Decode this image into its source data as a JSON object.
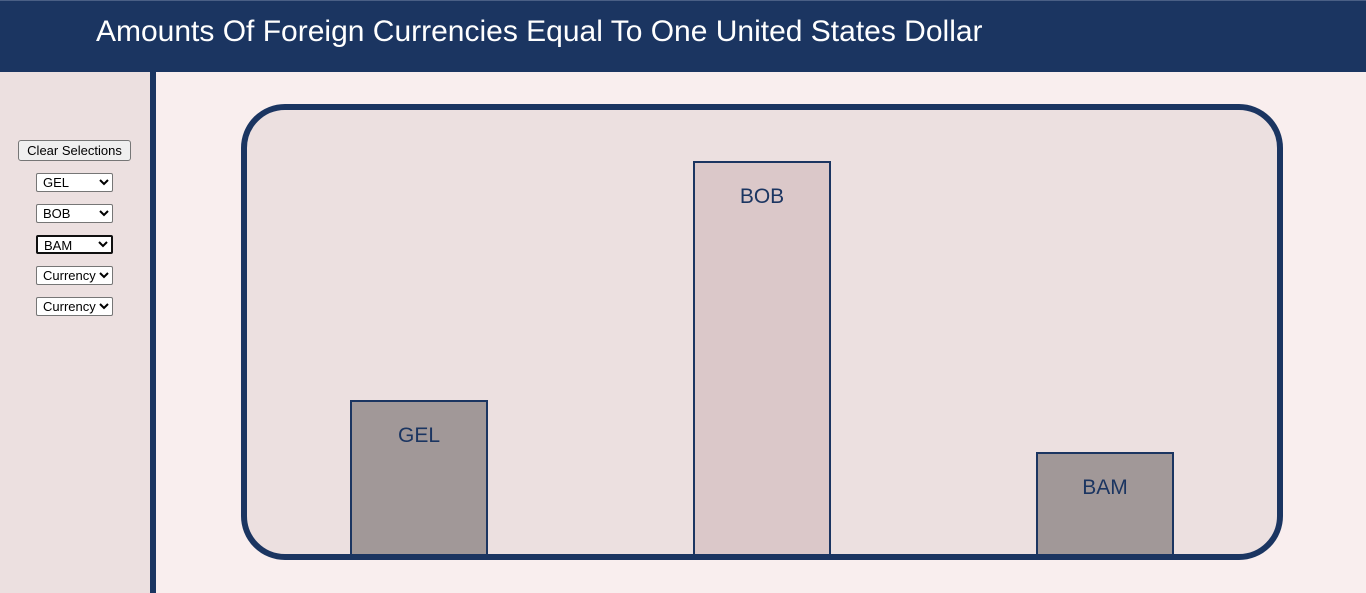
{
  "header": {
    "title": "Amounts Of Foreign Currencies Equal To One United States Dollar"
  },
  "sidebar": {
    "clear_label": "Clear Selections",
    "selects": [
      {
        "selected": "GEL"
      },
      {
        "selected": "BOB"
      },
      {
        "selected": "BAM"
      },
      {
        "selected": "Currency"
      },
      {
        "selected": "Currency"
      }
    ]
  },
  "chart_data": {
    "type": "bar",
    "categories": [
      "GEL",
      "BOB",
      "BAM"
    ],
    "values": [
      2.7,
      6.91,
      1.8
    ],
    "colors": [
      "#a19898",
      "#dbc8c9",
      "#a19898"
    ],
    "ylim": [
      0,
      7.8
    ]
  },
  "colors": {
    "header_bg": "#1b3561",
    "sidebar_bg": "#ece0e0",
    "page_bg": "#f9eeee",
    "chart_bg": "#ece0e0",
    "accent": "#1b3561"
  }
}
